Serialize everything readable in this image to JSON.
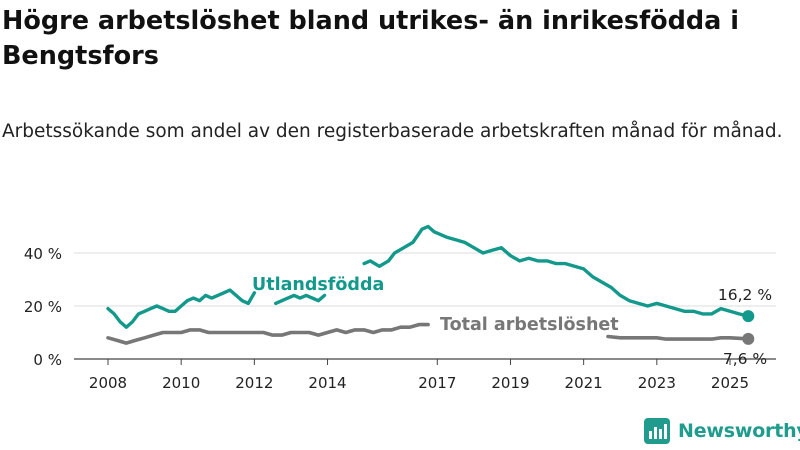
{
  "header": {
    "title": "Högre arbetslöshet bland utrikes- än inrikesfödda i Bengtsfors",
    "subtitle": "Arbetssökande som andel av den registerbaserade arbetskraften månad för månad."
  },
  "brand": {
    "name": "Newsworthy",
    "icon": "newsworthy-logo-icon",
    "color": "#1f9c8e"
  },
  "chart_data": {
    "type": "line",
    "x_ticks": [
      "2008",
      "2010",
      "2012",
      "2014",
      "2017",
      "2019",
      "2021",
      "2023",
      "2025"
    ],
    "y_ticks": [
      "0 %",
      "20 %",
      "40 %"
    ],
    "ylim": [
      0,
      50
    ],
    "grid": true,
    "series": [
      {
        "name": "Utlandsfödda",
        "color": "#13998b",
        "end_label": "16,2 %",
        "segments": [
          [
            [
              "2008-01",
              19
            ],
            [
              "2008-03",
              17
            ],
            [
              "2008-05",
              14
            ],
            [
              "2008-07",
              12
            ],
            [
              "2008-09",
              14
            ],
            [
              "2008-11",
              17
            ],
            [
              "2009-01",
              18
            ],
            [
              "2009-03",
              19
            ],
            [
              "2009-05",
              20
            ],
            [
              "2009-07",
              19
            ],
            [
              "2009-09",
              18
            ],
            [
              "2009-11",
              18
            ],
            [
              "2010-01",
              20
            ],
            [
              "2010-03",
              22
            ],
            [
              "2010-05",
              23
            ],
            [
              "2010-07",
              22
            ],
            [
              "2010-09",
              24
            ],
            [
              "2010-11",
              23
            ],
            [
              "2011-01",
              24
            ],
            [
              "2011-03",
              25
            ],
            [
              "2011-05",
              26
            ],
            [
              "2011-07",
              24
            ],
            [
              "2011-09",
              22
            ],
            [
              "2011-11",
              21
            ],
            [
              "2012-01",
              25
            ]
          ],
          [
            [
              "2012-08",
              21
            ],
            [
              "2012-10",
              22
            ],
            [
              "2012-12",
              23
            ],
            [
              "2013-02",
              24
            ],
            [
              "2013-04",
              23
            ],
            [
              "2013-06",
              24
            ],
            [
              "2013-08",
              23
            ],
            [
              "2013-10",
              22
            ],
            [
              "2013-12",
              24
            ]
          ],
          [
            [
              "2015-01",
              36
            ],
            [
              "2015-03",
              37
            ],
            [
              "2015-06",
              35
            ],
            [
              "2015-09",
              37
            ],
            [
              "2015-11",
              40
            ],
            [
              "2016-02",
              42
            ],
            [
              "2016-05",
              44
            ],
            [
              "2016-08",
              49
            ],
            [
              "2016-10",
              50
            ],
            [
              "2016-12",
              48
            ],
            [
              "2017-02",
              47
            ],
            [
              "2017-04",
              46
            ],
            [
              "2017-07",
              45
            ],
            [
              "2017-10",
              44
            ],
            [
              "2018-01",
              42
            ],
            [
              "2018-04",
              40
            ],
            [
              "2018-07",
              41
            ],
            [
              "2018-10",
              42
            ],
            [
              "2019-01",
              39
            ],
            [
              "2019-04",
              37
            ],
            [
              "2019-07",
              38
            ],
            [
              "2019-10",
              37
            ],
            [
              "2020-01",
              37
            ],
            [
              "2020-04",
              36
            ],
            [
              "2020-07",
              36
            ],
            [
              "2020-10",
              35
            ],
            [
              "2021-01",
              34
            ],
            [
              "2021-04",
              31
            ],
            [
              "2021-07",
              29
            ],
            [
              "2021-10",
              27
            ],
            [
              "2022-01",
              24
            ],
            [
              "2022-04",
              22
            ],
            [
              "2022-07",
              21
            ],
            [
              "2022-10",
              20
            ],
            [
              "2023-01",
              21
            ],
            [
              "2023-04",
              20
            ],
            [
              "2023-07",
              19
            ],
            [
              "2023-10",
              18
            ],
            [
              "2024-01",
              18
            ],
            [
              "2024-04",
              17
            ],
            [
              "2024-07",
              17
            ],
            [
              "2024-10",
              19
            ],
            [
              "2025-01",
              18
            ],
            [
              "2025-04",
              17
            ],
            [
              "2025-07",
              16.2
            ]
          ]
        ]
      },
      {
        "name": "Total arbetslöshet",
        "color": "#777777",
        "end_label": "7,6 %",
        "segments": [
          [
            [
              "2008-01",
              8
            ],
            [
              "2008-04",
              7
            ],
            [
              "2008-07",
              6
            ],
            [
              "2008-10",
              7
            ],
            [
              "2009-01",
              8
            ],
            [
              "2009-04",
              9
            ],
            [
              "2009-07",
              10
            ],
            [
              "2009-10",
              10
            ],
            [
              "2010-01",
              10
            ],
            [
              "2010-04",
              11
            ],
            [
              "2010-07",
              11
            ],
            [
              "2010-10",
              10
            ],
            [
              "2011-01",
              10
            ],
            [
              "2011-04",
              10
            ],
            [
              "2011-07",
              10
            ],
            [
              "2011-10",
              10
            ],
            [
              "2012-01",
              10
            ],
            [
              "2012-04",
              10
            ],
            [
              "2012-07",
              9
            ],
            [
              "2012-10",
              9
            ],
            [
              "2013-01",
              10
            ],
            [
              "2013-04",
              10
            ],
            [
              "2013-07",
              10
            ],
            [
              "2013-10",
              9
            ],
            [
              "2014-01",
              10
            ],
            [
              "2014-04",
              11
            ],
            [
              "2014-07",
              10
            ],
            [
              "2014-10",
              11
            ],
            [
              "2015-01",
              11
            ],
            [
              "2015-04",
              10
            ],
            [
              "2015-07",
              11
            ],
            [
              "2015-10",
              11
            ],
            [
              "2016-01",
              12
            ],
            [
              "2016-04",
              12
            ],
            [
              "2016-07",
              13
            ],
            [
              "2016-10",
              13
            ]
          ],
          [
            [
              "2021-09",
              8.5
            ],
            [
              "2022-01",
              8
            ],
            [
              "2022-04",
              8
            ],
            [
              "2022-07",
              8
            ],
            [
              "2022-10",
              8
            ],
            [
              "2023-01",
              8
            ],
            [
              "2023-04",
              7.5
            ],
            [
              "2023-07",
              7.5
            ],
            [
              "2023-10",
              7.5
            ],
            [
              "2024-01",
              7.5
            ],
            [
              "2024-04",
              7.5
            ],
            [
              "2024-07",
              7.5
            ],
            [
              "2024-10",
              8
            ],
            [
              "2025-01",
              8
            ],
            [
              "2025-04",
              7.8
            ],
            [
              "2025-07",
              7.6
            ]
          ]
        ]
      }
    ]
  }
}
